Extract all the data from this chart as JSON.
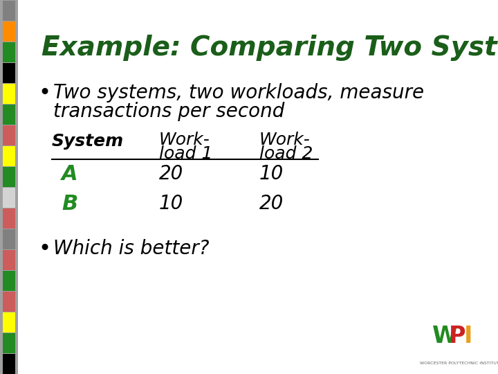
{
  "title": "Example: Comparing Two Systems",
  "title_color": "#1a5e1a",
  "title_fontsize": 28,
  "slide_bg": "#ffffff",
  "bullet1_line1": "Two systems, two workloads, measure",
  "bullet1_line2": "transactions per second",
  "bullet2": "Which is better?",
  "bullet_color": "#000000",
  "bullet_fontsize": 20,
  "table_header_color": "#000000",
  "table_ab_color": "#228B22",
  "table_data_color": "#000000",
  "table_header_fontsize": 18,
  "table_data_fontsize": 20,
  "stripe_colors": [
    "#808080",
    "#ff8c00",
    "#228B22",
    "#000000",
    "#ffff00",
    "#228B22",
    "#cd5c5c",
    "#ffff00",
    "#228B22",
    "#d3d3d3",
    "#cd5c5c",
    "#808080",
    "#cd5c5c",
    "#228B22",
    "#cd5c5c",
    "#ffff00",
    "#228B22",
    "#000000"
  ],
  "wpi_w_color": "#228B22",
  "wpi_p_color": "#cc2222",
  "wpi_i_color": "#e8a020"
}
